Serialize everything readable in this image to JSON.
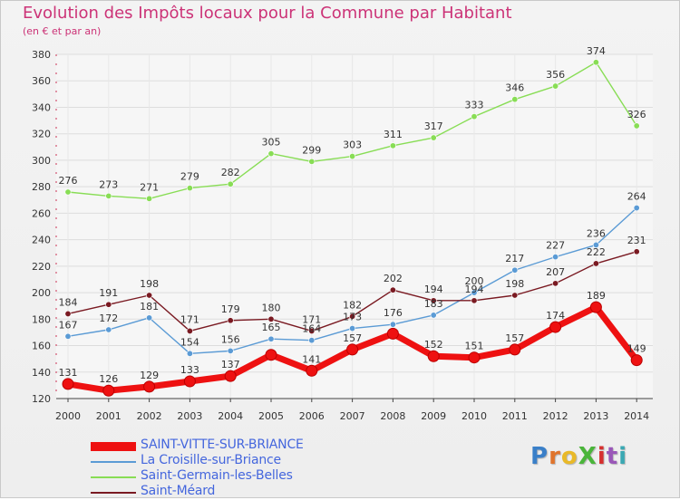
{
  "header": {
    "title": "Evolution des Impôts locaux pour la Commune par Habitant",
    "subtitle": "(en € et par an)"
  },
  "logo": {
    "text": "ProXiti",
    "letters": [
      {
        "ch": "P",
        "color": "#3a7fc8"
      },
      {
        "ch": "r",
        "color": "#e0742c"
      },
      {
        "ch": "o",
        "color": "#e9b928"
      },
      {
        "ch": "X",
        "color": "#4ab53a"
      },
      {
        "ch": "i",
        "color": "#d6302f"
      },
      {
        "ch": "t",
        "color": "#9a57b8"
      },
      {
        "ch": "i",
        "color": "#3aa8b3"
      }
    ]
  },
  "chart_data": {
    "type": "line",
    "title": "Evolution des Impôts locaux pour la Commune par Habitant",
    "subtitle": "(en € et par an)",
    "xlabel": "",
    "ylabel": "",
    "x": [
      "2000",
      "2001",
      "2002",
      "2003",
      "2004",
      "2005",
      "2006",
      "2007",
      "2008",
      "2009",
      "2010",
      "2011",
      "2012",
      "2013",
      "2014"
    ],
    "ylim": [
      120,
      380
    ],
    "yticks": [
      120,
      140,
      160,
      180,
      200,
      220,
      240,
      260,
      280,
      300,
      320,
      340,
      360,
      380
    ],
    "grid": true,
    "legend_position": "bottom-left",
    "series": [
      {
        "name": "SAINT-VITTE-SUR-BRIANCE",
        "color": "#ee1111",
        "width": 7,
        "marker": 6,
        "values": [
          131,
          126,
          129,
          133,
          137,
          153,
          141,
          157,
          169,
          152,
          151,
          157,
          174,
          189,
          149
        ],
        "labels": [
          "131",
          "126",
          "129",
          "133",
          "137",
          "",
          "141",
          "157",
          "",
          "152",
          "151",
          "157",
          "174",
          "189",
          "149"
        ]
      },
      {
        "name": "La Croisille-sur-Briance",
        "color": "#5b9bd5",
        "width": 1.4,
        "marker": 3.2,
        "values": [
          167,
          172,
          181,
          154,
          156,
          165,
          164,
          173,
          176,
          183,
          200,
          217,
          227,
          236,
          264
        ],
        "labels": [
          "167",
          "172",
          "181",
          "154",
          "156",
          "165",
          "164",
          "173",
          "176",
          "183",
          "200",
          "217",
          "227",
          "236",
          "264"
        ]
      },
      {
        "name": "Saint-Germain-les-Belles",
        "color": "#88dd55",
        "width": 1.4,
        "marker": 3.2,
        "values": [
          276,
          273,
          271,
          279,
          282,
          305,
          299,
          303,
          311,
          317,
          333,
          346,
          356,
          374,
          326
        ],
        "labels": [
          "276",
          "273",
          "271",
          "279",
          "282",
          "305",
          "299",
          "303",
          "311",
          "317",
          "333",
          "346",
          "356",
          "374",
          "326"
        ]
      },
      {
        "name": "Saint-Méard",
        "color": "#7a1a22",
        "width": 1.4,
        "marker": 3.2,
        "values": [
          184,
          191,
          198,
          171,
          179,
          180,
          171,
          182,
          202,
          194,
          194,
          198,
          207,
          222,
          231
        ],
        "labels": [
          "184",
          "191",
          "198",
          "171",
          "179",
          "180",
          "171",
          "182",
          "202",
          "194",
          "194",
          "198",
          "207",
          "222",
          "231"
        ]
      }
    ]
  }
}
